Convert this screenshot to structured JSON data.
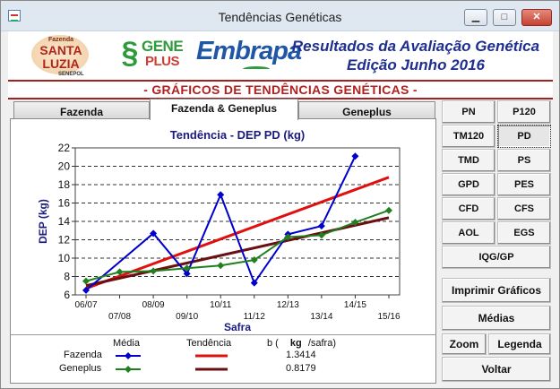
{
  "window": {
    "title": "Tendências Genéticas",
    "minimize_label": "▁",
    "maximize_label": "□",
    "close_label": "✕"
  },
  "header": {
    "santa_luzia": {
      "line1": "Fazenda",
      "line2": "SANTA",
      "line3": "LUZIA",
      "line4": "SENEPOL"
    },
    "geneplus": {
      "line1": "GENE",
      "line2": "PLUS"
    },
    "embrapa": "Embrapa",
    "title_line1": "Resultados da Avaliação Genética",
    "title_line2": "Edição Junho 2016"
  },
  "banner": "- GRÁFICOS DE TENDÊNCIAS GENÉTICAS -",
  "tabs": [
    {
      "label": "Fazenda",
      "active": false
    },
    {
      "label": "Fazenda & Geneplus",
      "active": true
    },
    {
      "label": "Geneplus",
      "active": false
    }
  ],
  "trait_buttons": [
    {
      "label": "PN",
      "selected": false
    },
    {
      "label": "P120",
      "selected": false
    },
    {
      "label": "TM120",
      "selected": false
    },
    {
      "label": "PD",
      "selected": true
    },
    {
      "label": "TMD",
      "selected": false
    },
    {
      "label": "PS",
      "selected": false
    },
    {
      "label": "GPD",
      "selected": false
    },
    {
      "label": "PES",
      "selected": false
    },
    {
      "label": "CFD",
      "selected": false
    },
    {
      "label": "CFS",
      "selected": false
    },
    {
      "label": "AOL",
      "selected": false
    },
    {
      "label": "EGS",
      "selected": false
    },
    {
      "label": "IQG/GP",
      "selected": false
    }
  ],
  "action_buttons": {
    "print": "Imprimir Gráficos",
    "medias": "Médias",
    "zoom": "Zoom",
    "legend": "Legenda",
    "back": "Voltar"
  },
  "legend": {
    "col_media": "Média",
    "col_tendencia": "Tendência",
    "col_b_prefix": "b (",
    "col_b_unit": "kg",
    "col_b_suffix": "/safra)",
    "rows": [
      {
        "name": "Fazenda",
        "b": "1.3414"
      },
      {
        "name": "Geneplus",
        "b": "0.8179"
      }
    ]
  },
  "colors": {
    "fazenda_media": "#0000cc",
    "geneplus_media": "#208020",
    "fazenda_trend": "#e01010",
    "geneplus_trend": "#6a1010",
    "title_navy": "#1a1a80"
  },
  "chart_data": {
    "type": "line",
    "title": "Tendência - DEP PD (kg)",
    "xlabel": "Safra",
    "ylabel": "DEP (kg)",
    "categories": [
      "06/07",
      "07/08",
      "08/09",
      "09/10",
      "10/11",
      "11/12",
      "12/13",
      "13/14",
      "14/15",
      "15/16"
    ],
    "ylim": [
      6,
      22
    ],
    "yticks": [
      6,
      8,
      10,
      12,
      14,
      16,
      18,
      20,
      22
    ],
    "grid": "horizontal dashed",
    "series": [
      {
        "name": "Fazenda",
        "kind": "media",
        "values": [
          6.5,
          null,
          12.7,
          8.3,
          16.9,
          7.3,
          12.6,
          13.5,
          21.1,
          null
        ]
      },
      {
        "name": "Geneplus",
        "kind": "media",
        "values": [
          7.5,
          8.5,
          8.6,
          8.9,
          9.2,
          9.8,
          12.3,
          12.5,
          13.9,
          15.2
        ]
      },
      {
        "name": "Fazenda",
        "kind": "tendencia",
        "from": [
          0,
          6.7
        ],
        "to": [
          9,
          18.8
        ]
      },
      {
        "name": "Geneplus",
        "kind": "tendencia",
        "from": [
          0,
          7.0
        ],
        "to": [
          9,
          14.4
        ]
      }
    ]
  }
}
